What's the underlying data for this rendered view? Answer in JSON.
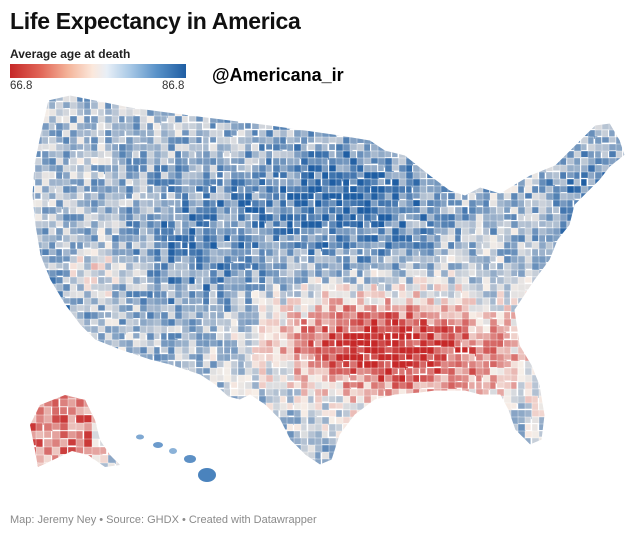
{
  "title": "Life Expectancy in America",
  "legend": {
    "label": "Average age at death",
    "min": "66.8",
    "max": "86.8",
    "low_color": "#c62828",
    "mid_color": "#f7efe8",
    "high_color": "#1f5ea3"
  },
  "watermark": "@Americana_ir",
  "credit": "Map: Jeremy Ney • Source: GHDX • Created with Datawrapper"
}
